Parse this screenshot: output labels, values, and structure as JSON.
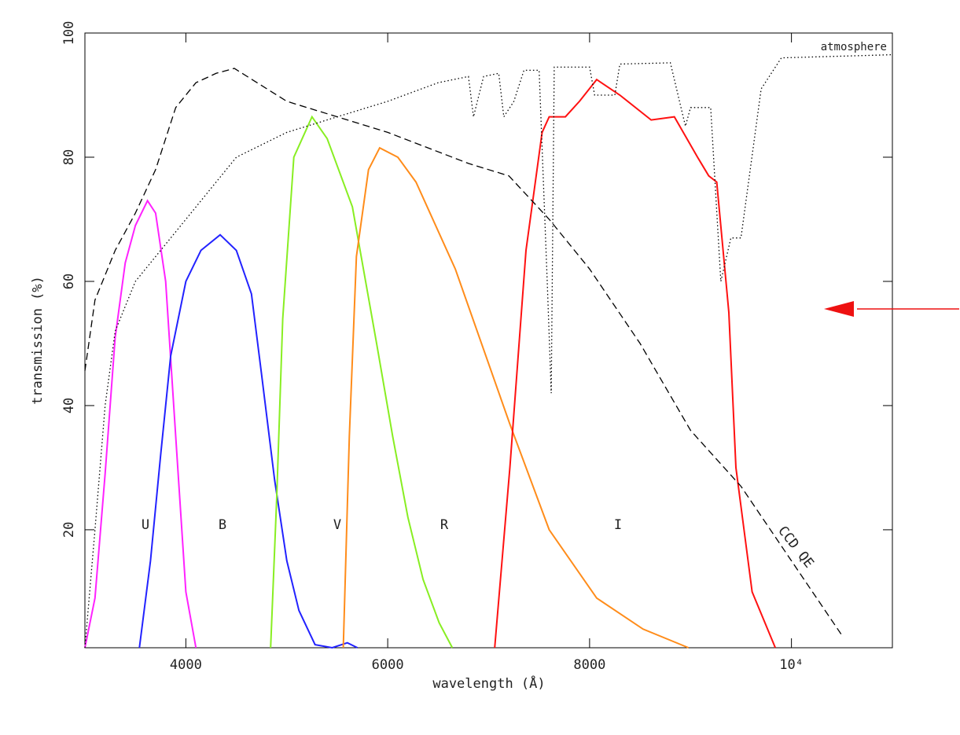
{
  "chart_data": {
    "type": "line",
    "xlabel": "wavelength (Å)",
    "ylabel": "transmission (%)",
    "xlim": [
      3000,
      11000
    ],
    "ylim": [
      1,
      100
    ],
    "xticks": [
      4000,
      6000,
      8000,
      {
        "value": 10000,
        "label": "10⁴"
      }
    ],
    "yticks": [
      20,
      40,
      60,
      80,
      100
    ],
    "series": [
      {
        "name": "U",
        "color": "#ff22ff",
        "dash": "solid",
        "x": [
          3000,
          3100,
          3200,
          3300,
          3400,
          3500,
          3620,
          3700,
          3800,
          3900,
          4000,
          4100
        ],
        "values": [
          1,
          9,
          29,
          51,
          63,
          69,
          73,
          71,
          60,
          35,
          10,
          1
        ]
      },
      {
        "name": "B",
        "color": "#2222ff",
        "dash": "solid",
        "x": [
          3540,
          3650,
          3750,
          3850,
          4000,
          4150,
          4340,
          4500,
          4650,
          4750,
          4880,
          5000,
          5120,
          5280,
          5450,
          5600,
          5700
        ],
        "values": [
          1,
          15,
          32,
          48,
          60,
          65,
          67.5,
          65,
          58,
          45,
          28,
          15,
          7,
          1.5,
          1,
          1.8,
          1
        ]
      },
      {
        "name": "V",
        "color": "#88ee22",
        "dash": "solid",
        "x": [
          4840,
          4900,
          4960,
          5070,
          5250,
          5400,
          5650,
          5890,
          6050,
          6200,
          6350,
          6510,
          6640
        ],
        "values": [
          1,
          25,
          54,
          80,
          86.5,
          83,
          72,
          50,
          35,
          22,
          12,
          5,
          1
        ]
      },
      {
        "name": "R",
        "color": "#ff8c1a",
        "dash": "solid",
        "x": [
          5560,
          5620,
          5690,
          5810,
          5920,
          6100,
          6280,
          6670,
          7210,
          7600,
          8070,
          8530,
          8980
        ],
        "values": [
          1,
          35,
          64,
          78,
          81.5,
          80,
          76,
          62,
          37,
          20,
          9,
          4,
          1
        ]
      },
      {
        "name": "I",
        "color": "#ff1111",
        "dash": "solid",
        "x": [
          7060,
          7210,
          7370,
          7530,
          7600,
          7760,
          7900,
          8070,
          8300,
          8610,
          8840,
          9070,
          9180,
          9260,
          9380,
          9450,
          9610,
          9840
        ],
        "values": [
          1,
          30,
          65,
          84,
          86.5,
          86.5,
          89,
          92.5,
          90,
          86,
          86.5,
          80,
          77,
          76,
          55,
          30,
          10,
          1
        ]
      },
      {
        "name": "CCD QE",
        "color": "#000000",
        "dash": "dashed",
        "x": [
          3000,
          3100,
          3300,
          3500,
          3700,
          3900,
          4100,
          4300,
          4480,
          5000,
          6000,
          6800,
          7200,
          7600,
          8000,
          8500,
          9000,
          9500,
          10000,
          10500
        ],
        "values": [
          45.6,
          57,
          65,
          71,
          78,
          88,
          92,
          93.5,
          94.3,
          89,
          84,
          79,
          77,
          70,
          62,
          50,
          36,
          27,
          15,
          3
        ]
      },
      {
        "name": "atmosphere",
        "color": "#000000",
        "dash": "dotted",
        "x": [
          3000,
          3100,
          3200,
          3300,
          3500,
          4000,
          4500,
          5000,
          5500,
          6000,
          6500,
          6800,
          6850,
          6950,
          7100,
          7150,
          7250,
          7350,
          7500,
          7580,
          7620,
          7650,
          8000,
          8050,
          8250,
          8300,
          8800,
          8950,
          9000,
          9200,
          9300,
          9400,
          9500,
          9700,
          9900,
          11000
        ],
        "values": [
          1,
          20,
          40,
          52,
          60,
          70,
          80,
          84,
          86.5,
          89,
          92,
          93,
          86.5,
          93,
          93.5,
          86.5,
          89,
          94,
          94,
          60,
          42,
          94.5,
          94.5,
          90,
          90,
          95,
          95.2,
          85,
          88,
          88,
          60,
          67,
          67,
          91,
          96,
          96.5
        ]
      }
    ]
  }
}
